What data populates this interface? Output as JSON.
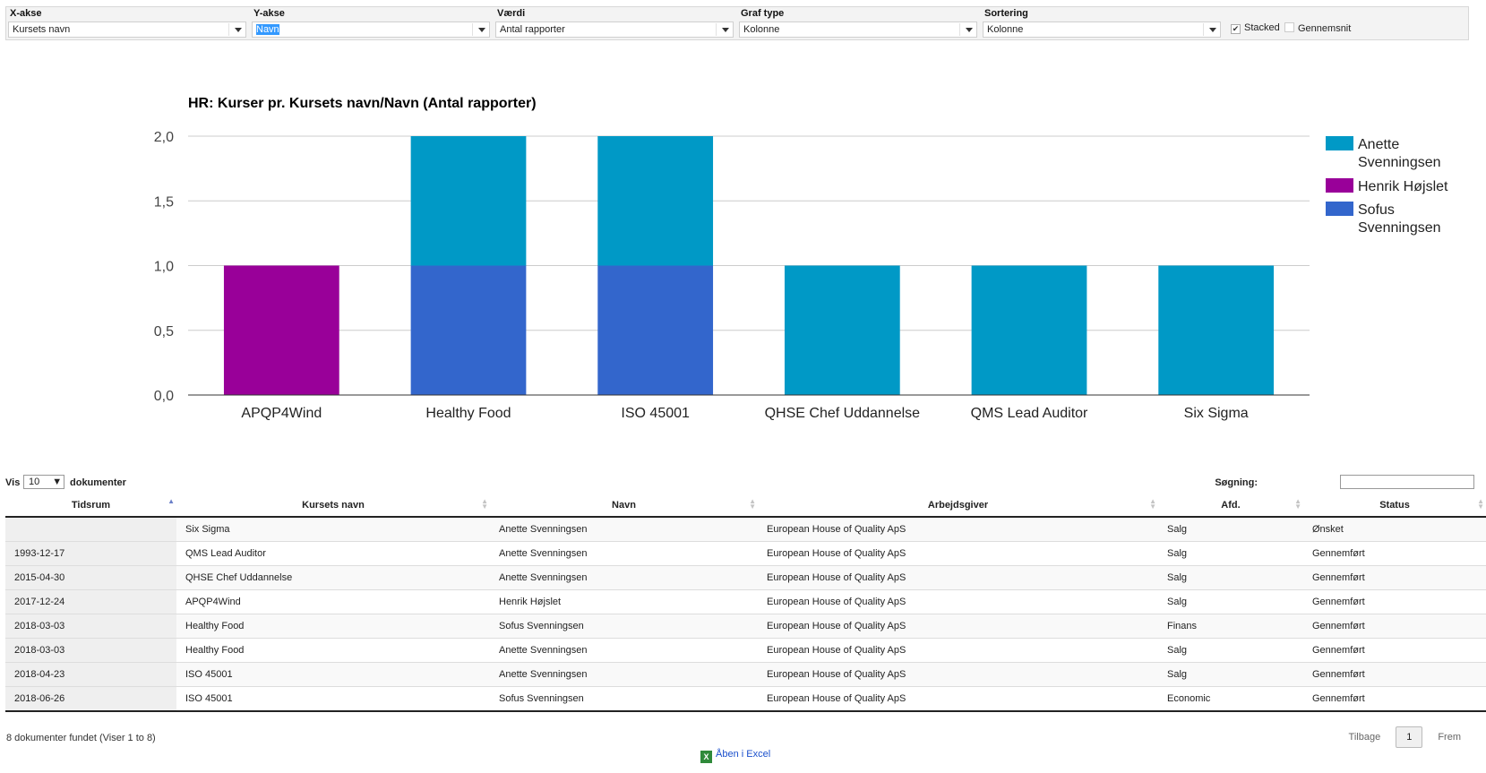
{
  "filters": {
    "x_axis": {
      "label": "X-akse",
      "value": "Kursets navn"
    },
    "y_axis": {
      "label": "Y-akse",
      "value": "Navn"
    },
    "value": {
      "label": "Værdi",
      "value": "Antal rapporter"
    },
    "graph_type": {
      "label": "Graf type",
      "value": "Kolonne"
    },
    "sorting": {
      "label": "Sortering",
      "value": "Kolonne"
    },
    "stacked": {
      "label": "Stacked",
      "checked": true
    },
    "average": {
      "label": "Gennemsnit",
      "checked": false
    }
  },
  "chart_data": {
    "type": "bar",
    "stacked": true,
    "title": "HR: Kurser pr. Kursets navn/Navn (Antal rapporter)",
    "categories": [
      "APQP4Wind",
      "Healthy Food",
      "ISO 45001",
      "QHSE Chef Uddannelse",
      "QMS Lead Auditor",
      "Six Sigma"
    ],
    "series": [
      {
        "name": "Henrik Højslet",
        "color": "#990099",
        "values": [
          1,
          0,
          0,
          0,
          0,
          0
        ]
      },
      {
        "name": "Sofus Svenningsen",
        "color": "#3366cc",
        "values": [
          0,
          1,
          1,
          0,
          0,
          0
        ]
      },
      {
        "name": "Anette Svenningsen",
        "color": "#0099c6",
        "values": [
          0,
          1,
          1,
          1,
          1,
          1
        ]
      }
    ],
    "legend_order": [
      "Anette Svenningsen",
      "Henrik Højslet",
      "Sofus Svenningsen"
    ],
    "yticks": [
      "0,0",
      "0,5",
      "1,0",
      "1,5",
      "2,0"
    ],
    "ylim": [
      0,
      2
    ],
    "grid": true,
    "legend_position": "right"
  },
  "table_controls": {
    "show_label": "Vis",
    "page_size": "10",
    "unit": "dokumenter",
    "search_label": "Søgning:",
    "search_value": ""
  },
  "table": {
    "columns": [
      "Tidsrum",
      "Kursets navn",
      "Navn",
      "Arbejdsgiver",
      "Afd.",
      "Status"
    ],
    "rows": [
      [
        "",
        "Six Sigma",
        "Anette Svenningsen",
        "European House of Quality ApS",
        "Salg",
        "Ønsket"
      ],
      [
        "1993-12-17",
        "QMS Lead Auditor",
        "Anette Svenningsen",
        "European House of Quality ApS",
        "Salg",
        "Gennemført"
      ],
      [
        "2015-04-30",
        "QHSE Chef Uddannelse",
        "Anette Svenningsen",
        "European House of Quality ApS",
        "Salg",
        "Gennemført"
      ],
      [
        "2017-12-24",
        "APQP4Wind",
        "Henrik Højslet",
        "European House of Quality ApS",
        "Salg",
        "Gennemført"
      ],
      [
        "2018-03-03",
        "Healthy Food",
        "Sofus Svenningsen",
        "European House of Quality ApS",
        "Finans",
        "Gennemført"
      ],
      [
        "2018-03-03",
        "Healthy Food",
        "Anette Svenningsen",
        "European House of Quality ApS",
        "Salg",
        "Gennemført"
      ],
      [
        "2018-04-23",
        "ISO 45001",
        "Anette Svenningsen",
        "European House of Quality ApS",
        "Salg",
        "Gennemført"
      ],
      [
        "2018-06-26",
        "ISO 45001",
        "Sofus Svenningsen",
        "European House of Quality ApS",
        "Economic",
        "Gennemført"
      ]
    ]
  },
  "footer": {
    "info": "8 dokumenter fundet (Viser 1 to 8)",
    "excel_label": "Åben i Excel",
    "prev_label": "Tilbage",
    "page": "1",
    "next_label": "Frem"
  }
}
